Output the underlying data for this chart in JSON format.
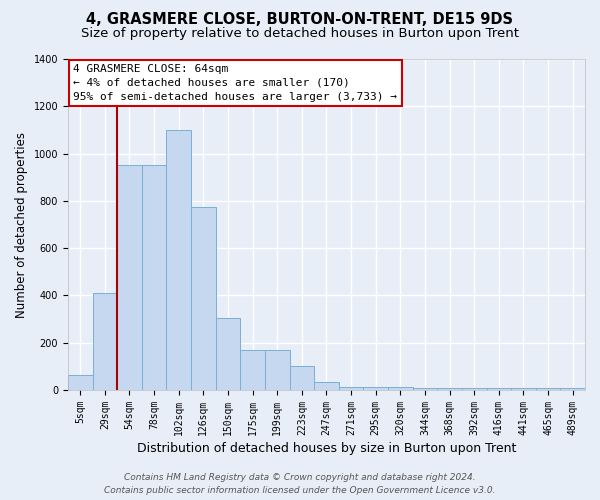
{
  "title1": "4, GRASMERE CLOSE, BURTON-ON-TRENT, DE15 9DS",
  "title2": "Size of property relative to detached houses in Burton upon Trent",
  "xlabel": "Distribution of detached houses by size in Burton upon Trent",
  "ylabel": "Number of detached properties",
  "categories": [
    "5sqm",
    "29sqm",
    "54sqm",
    "78sqm",
    "102sqm",
    "126sqm",
    "150sqm",
    "175sqm",
    "199sqm",
    "223sqm",
    "247sqm",
    "271sqm",
    "295sqm",
    "320sqm",
    "344sqm",
    "368sqm",
    "392sqm",
    "416sqm",
    "441sqm",
    "465sqm",
    "489sqm"
  ],
  "values": [
    65,
    410,
    950,
    950,
    1100,
    775,
    305,
    170,
    170,
    100,
    35,
    15,
    15,
    15,
    10,
    10,
    10,
    10,
    10,
    10,
    10
  ],
  "bar_color": "#c5d8f0",
  "bar_edge_color": "#7aafd4",
  "vline_x_idx": 1.5,
  "vline_color": "#aa0000",
  "annotation_text": "4 GRASMERE CLOSE: 64sqm\n← 4% of detached houses are smaller (170)\n95% of semi-detached houses are larger (3,733) →",
  "annotation_box_color": "#ffffff",
  "annotation_box_edge": "#cc0000",
  "ylim": [
    0,
    1400
  ],
  "yticks": [
    0,
    200,
    400,
    600,
    800,
    1000,
    1200,
    1400
  ],
  "bg_color": "#e8eef8",
  "grid_color": "#ffffff",
  "footer1": "Contains HM Land Registry data © Crown copyright and database right 2024.",
  "footer2": "Contains public sector information licensed under the Open Government Licence v3.0.",
  "title1_fontsize": 10.5,
  "title2_fontsize": 9.5,
  "xlabel_fontsize": 9,
  "ylabel_fontsize": 8.5,
  "tick_fontsize": 7,
  "annot_fontsize": 8,
  "footer_fontsize": 6.5
}
